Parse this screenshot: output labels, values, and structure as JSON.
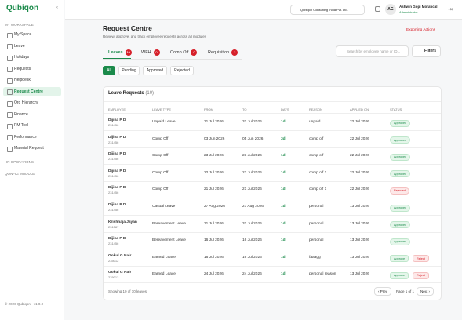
{
  "sidebar": {
    "logo": "Qubiqon",
    "section": "MY WORKSPACE",
    "items": [
      "My Space",
      "Leave",
      "Holidays",
      "Requests",
      "Helpdesk",
      "Request Centre",
      "Org Hierarchy",
      "Finance",
      "PM Tool",
      "Performance",
      "Material Request"
    ],
    "groups": [
      "HR OPERATIONS",
      "QONFIG MODULE"
    ],
    "footer": "© 2026 Qubiqon · v1.0.0"
  },
  "topbar": {
    "company": "Qubiqon Consulting India Pvt. Ltd.",
    "avatar": "AG",
    "user": "Ashwin Gopi Moratical",
    "role": "Administrator"
  },
  "header": {
    "title": "Request Centre",
    "subtitle": "Review, approve, and track employee requests across all modules",
    "action": "Exporting Actions"
  },
  "tabs": [
    {
      "label": "Leaves",
      "count": "10"
    },
    {
      "label": "WFH",
      "count": "0"
    },
    {
      "label": "Comp Off",
      "count": "0"
    },
    {
      "label": "Requisition",
      "count": "2"
    }
  ],
  "search": "Search by employee name or ID...",
  "filters": "Filters",
  "chips": [
    "All",
    "Pending",
    "Approved",
    "Rejected"
  ],
  "table": {
    "title": "Leave Requests",
    "count": "(10)",
    "columns": [
      "EMPLOYEE",
      "LEAVE TYPE",
      "FROM",
      "TO",
      "DAYS",
      "REASON",
      "APPLIED ON",
      "STATUS"
    ],
    "rows": [
      [
        "Dijina P D",
        "231456",
        "Unpaid Leave",
        "31 Jul 2026",
        "31 Jul 2026",
        "1d",
        "unpaid",
        "22 Jul 2026",
        "Approved"
      ],
      [
        "Dijina P D",
        "231456",
        "Comp Off",
        "03 Jun 2026",
        "05 Jun 2026",
        "3d",
        "comp off",
        "22 Jul 2026",
        "Approved"
      ],
      [
        "Dijina P D",
        "231456",
        "Comp Off",
        "23 Jul 2026",
        "23 Jul 2026",
        "1d",
        "comp off",
        "22 Jul 2026",
        "Approved"
      ],
      [
        "Dijina P D",
        "231456",
        "Comp Off",
        "22 Jul 2026",
        "22 Jul 2026",
        "1d",
        "comp off 1",
        "22 Jul 2026",
        "Approved"
      ],
      [
        "Dijina P D",
        "231456",
        "Comp Off",
        "21 Jul 2026",
        "21 Jul 2026",
        "1d",
        "comp off 1",
        "22 Jul 2026",
        "Rejected"
      ],
      [
        "Dijina P D",
        "231456",
        "Casual Leave",
        "27 Aug 2026",
        "27 Aug 2026",
        "1d",
        "personal",
        "13 Jul 2026",
        "Approved"
      ],
      [
        "Krishnaja Jayan",
        "231587",
        "Bereavement Leave",
        "31 Jul 2026",
        "31 Jul 2026",
        "1d",
        "personal",
        "13 Jul 2026",
        "Approved"
      ],
      [
        "Dijina P D",
        "231456",
        "Bereavement Leave",
        "16 Jul 2026",
        "16 Jul 2026",
        "1d",
        "personal",
        "13 Jul 2026",
        "Approved"
      ],
      [
        "Gokul G Nair",
        "235012",
        "Earned Leave",
        "16 Jul 2026",
        "16 Jul 2026",
        "1d",
        "faaagg",
        "13 Jul 2026",
        "Approve",
        "Reject"
      ],
      [
        "Gokul G Nair",
        "235012",
        "Earned Leave",
        "24 Jul 2026",
        "24 Jul 2026",
        "1d",
        "personal reason",
        "13 Jul 2026",
        "Approve",
        "Reject"
      ]
    ]
  },
  "pager": {
    "showing": "Showing 10 of 10 leaves",
    "prev": "‹ Prev",
    "page": "Page 1 of 1",
    "next": "Next ›"
  }
}
